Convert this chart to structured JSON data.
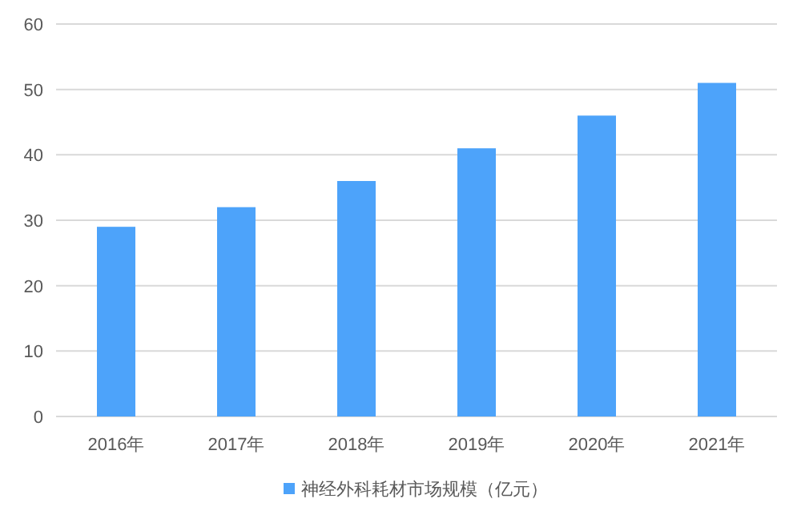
{
  "chart_data": {
    "type": "bar",
    "categories": [
      "2016年",
      "2017年",
      "2018年",
      "2019年",
      "2020年",
      "2021年"
    ],
    "series": [
      {
        "name": "神经外科耗材市场规模（亿元）",
        "color": "#4da3fa",
        "values": [
          29,
          32,
          36,
          41,
          46,
          51
        ]
      }
    ],
    "ylim": [
      0,
      60
    ],
    "yticks": [
      0,
      10,
      20,
      30,
      40,
      50,
      60
    ],
    "grid": "y",
    "legend": "bottom"
  }
}
